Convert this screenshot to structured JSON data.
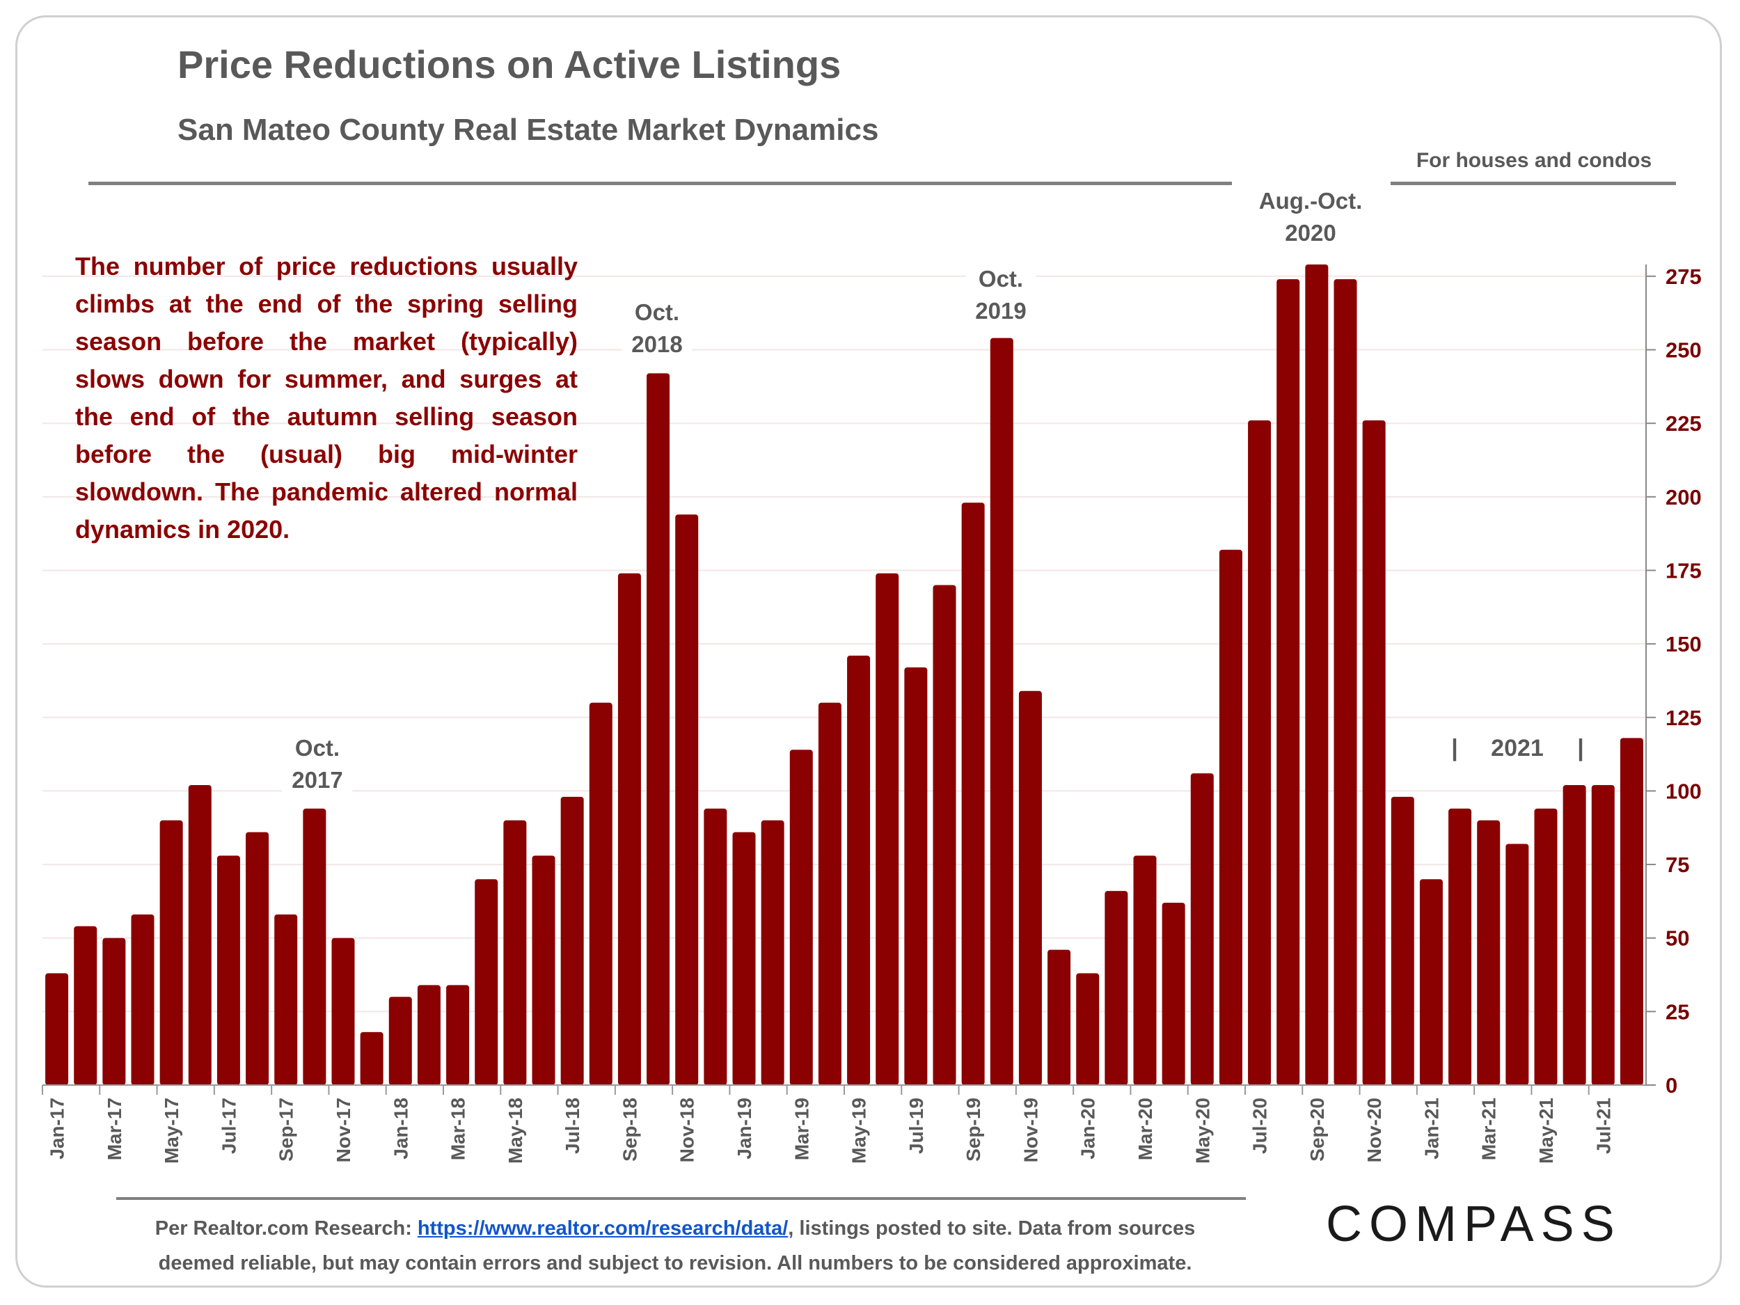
{
  "header": {
    "title": "Price Reductions on Active Listings",
    "subtitle": "San Mateo County Real Estate Market Dynamics",
    "note": "For houses and condos"
  },
  "description": "The number of price reductions usually climbs at the end of the spring selling season before the market (typically) slows down for summer, and surges at the end of the autumn selling season before the (usual) big mid-winter slowdown.  The pandemic altered normal dynamics in 2020.",
  "annotations": {
    "oct2017": [
      "Oct.",
      "2017"
    ],
    "oct2018": [
      "Oct.",
      "2018"
    ],
    "oct2019": [
      "Oct.",
      "2019"
    ],
    "aug_oct2020": [
      "Aug.-Oct.",
      "2020"
    ],
    "y2021": "2021"
  },
  "footer": {
    "line1_prefix": "Per Realtor.com Research:  ",
    "link": "https://www.realtor.com/research/data/",
    "line1_suffix": ", listings posted to site. Data from sources",
    "line2": "deemed reliable, but may contain errors and subject to revision. All numbers to be considered approximate."
  },
  "logo": "COMPASS",
  "chart_data": {
    "type": "bar",
    "title": "Price Reductions on Active Listings",
    "subtitle": "San Mateo County Real Estate Market Dynamics",
    "xlabel": "",
    "ylabel": "",
    "ylim": [
      0,
      279
    ],
    "yticks": [
      0,
      25,
      50,
      75,
      100,
      125,
      150,
      175,
      200,
      225,
      250,
      275
    ],
    "y_axis_side": "right",
    "grid": true,
    "bar_color": "#8b0000",
    "categories": [
      "Jan-17",
      "Feb-17",
      "Mar-17",
      "Apr-17",
      "May-17",
      "Jun-17",
      "Jul-17",
      "Aug-17",
      "Sep-17",
      "Oct-17",
      "Nov-17",
      "Dec-17",
      "Jan-18",
      "Feb-18",
      "Mar-18",
      "Apr-18",
      "May-18",
      "Jun-18",
      "Jul-18",
      "Aug-18",
      "Sep-18",
      "Oct-18",
      "Nov-18",
      "Dec-18",
      "Jan-19",
      "Feb-19",
      "Mar-19",
      "Apr-19",
      "May-19",
      "Jun-19",
      "Jul-19",
      "Aug-19",
      "Sep-19",
      "Oct-19",
      "Nov-19",
      "Dec-19",
      "Jan-20",
      "Feb-20",
      "Mar-20",
      "Apr-20",
      "May-20",
      "Jun-20",
      "Jul-20",
      "Aug-20",
      "Sep-20",
      "Oct-20",
      "Nov-20",
      "Dec-20",
      "Jan-21",
      "Feb-21",
      "Mar-21",
      "Apr-21",
      "May-21",
      "Jun-21",
      "Jul-21",
      "Aug-21"
    ],
    "values": [
      38,
      54,
      50,
      58,
      90,
      102,
      78,
      86,
      58,
      94,
      50,
      18,
      30,
      34,
      34,
      70,
      90,
      78,
      98,
      130,
      174,
      242,
      194,
      94,
      86,
      90,
      114,
      130,
      146,
      174,
      142,
      170,
      198,
      254,
      134,
      46,
      38,
      66,
      78,
      62,
      106,
      182,
      226,
      274,
      280,
      274,
      226,
      98,
      70,
      94,
      90,
      82,
      94,
      102,
      102,
      118
    ]
  }
}
